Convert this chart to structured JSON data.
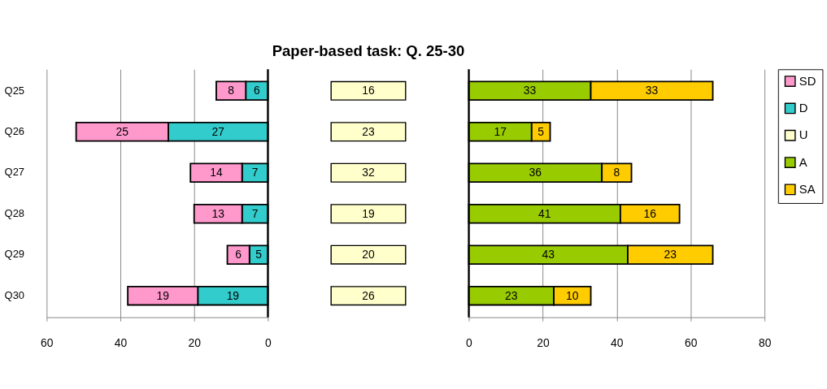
{
  "chart_data": [
    {
      "type": "bar",
      "orientation": "horizontal",
      "stacked": true,
      "categories": [
        "Q25",
        "Q26",
        "Q27",
        "Q28",
        "Q29",
        "Q30"
      ],
      "xlim": [
        60,
        0
      ],
      "xticks": [
        60,
        40,
        20,
        0
      ],
      "grid": "x",
      "data_labels": true,
      "legend": "right",
      "series": [
        {
          "name": "D",
          "color": "#33cccc",
          "values": [
            6,
            27,
            7,
            7,
            5,
            19
          ]
        },
        {
          "name": "SD",
          "color": "#ff99cc",
          "values": [
            8,
            25,
            14,
            13,
            6,
            19
          ]
        }
      ]
    },
    {
      "type": "other",
      "title": "Paper-based task: Q. 25-30",
      "data_labels": true,
      "legend": "right",
      "series": [
        {
          "name": "U",
          "color": "#ffffcc",
          "values": [
            16,
            23,
            32,
            19,
            20,
            26
          ]
        }
      ]
    },
    {
      "type": "bar",
      "orientation": "horizontal",
      "stacked": true,
      "xlim": [
        0,
        80
      ],
      "xticks": [
        0,
        20,
        40,
        60,
        80
      ],
      "grid": "x",
      "data_labels": true,
      "tick_labels": "x",
      "legend": "right",
      "series": [
        {
          "name": "A",
          "color": "#99cc00",
          "values": [
            33,
            17,
            36,
            41,
            43,
            23
          ]
        },
        {
          "name": "SA",
          "color": "#ffcc00",
          "values": [
            33,
            5,
            8,
            16,
            23,
            10
          ]
        }
      ]
    }
  ]
}
